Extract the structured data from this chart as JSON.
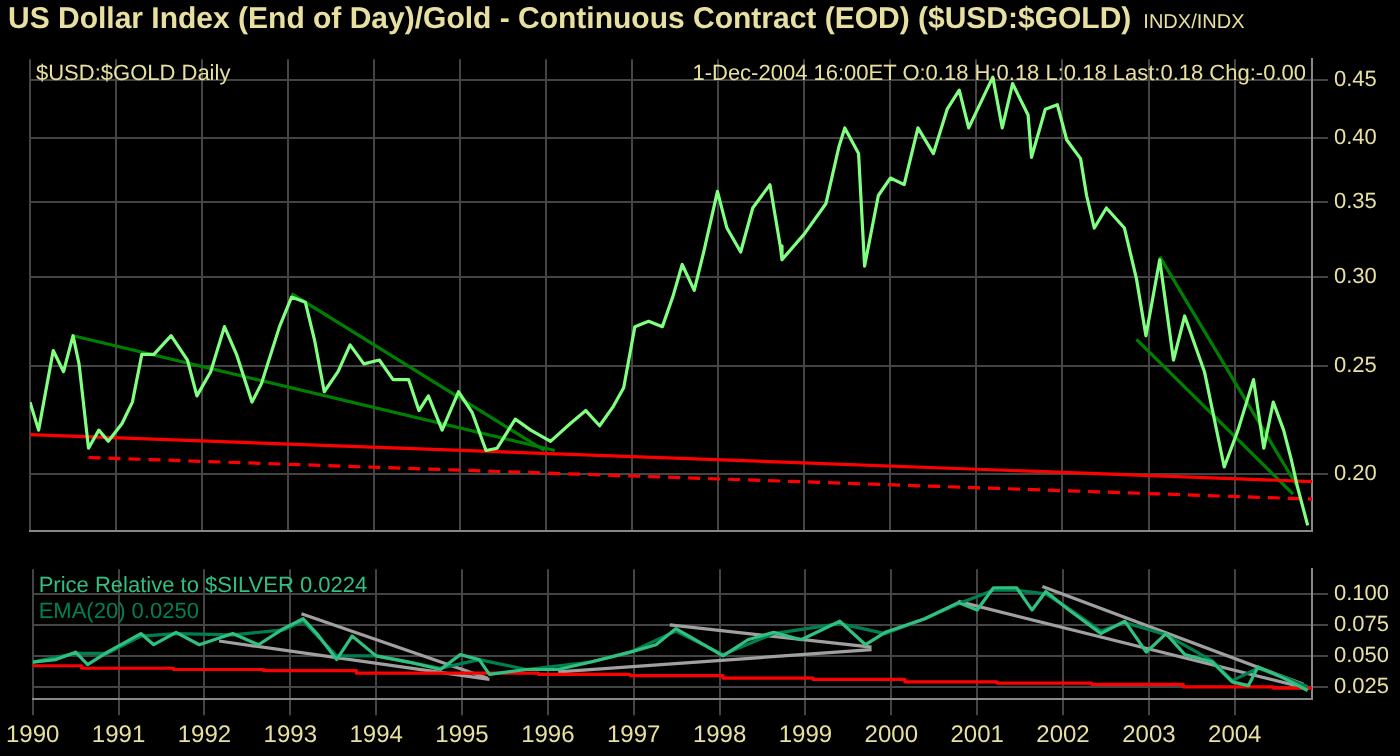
{
  "chart_data": [
    {
      "type": "line",
      "title": "US Dollar Index (End of Day)/Gold - Continuous Contract (EOD) ($USD:$GOLD)",
      "subtitle": "INDX/INDX",
      "annotations": [
        "$USD:$GOLD Daily",
        "1-Dec-2004 16:00ET O:0.18 H:0.18 L:0.18 Last:0.18 Chg:-0.00"
      ],
      "xlim": [
        1990,
        2004.9
      ],
      "xticks": [
        1990,
        1991,
        1992,
        1993,
        1994,
        1995,
        1996,
        1997,
        1998,
        1999,
        2000,
        2001,
        2002,
        2003,
        2004
      ],
      "ylim": [
        0.178,
        0.47
      ],
      "yticks": [
        {
          "value": 0.2,
          "label": "0.20"
        },
        {
          "value": 0.25,
          "label": "0.25"
        },
        {
          "value": 0.3,
          "label": "0.30"
        },
        {
          "value": 0.35,
          "label": "0.35"
        },
        {
          "value": 0.4,
          "label": "0.40"
        },
        {
          "value": 0.45,
          "label": "0.45"
        }
      ],
      "log": "y",
      "grid": true,
      "tick_labels": "y",
      "marker": "none",
      "series": [
        {
          "color": "#80ff80",
          "x": [
            1990.0,
            1990.1,
            1990.27,
            1990.39,
            1990.5,
            1990.57,
            1990.68,
            1990.8,
            1990.91,
            1991.07,
            1991.19,
            1991.3,
            1991.44,
            1991.64,
            1991.83,
            1991.94,
            1992.1,
            1992.26,
            1992.4,
            1992.58,
            1992.69,
            1992.9,
            1993.04,
            1993.2,
            1993.31,
            1993.42,
            1993.58,
            1993.72,
            1993.88,
            1994.06,
            1994.22,
            1994.4,
            1994.52,
            1994.63,
            1994.79,
            1994.98,
            1995.14,
            1995.3,
            1995.43,
            1995.64,
            1995.82,
            1996.05,
            1996.28,
            1996.46,
            1996.62,
            1996.78,
            1996.9,
            1997.03,
            1997.19,
            1997.35,
            1997.47,
            1997.58,
            1997.72,
            1997.83,
            1997.99,
            1998.1,
            1998.26,
            1998.4,
            1998.6,
            1998.72,
            1998.74,
            1999.0,
            1999.25,
            1999.4,
            1999.47,
            1999.63,
            1999.7,
            1999.86,
            2000.0,
            2000.16,
            2000.32,
            2000.5,
            2000.66,
            2000.8,
            2000.91,
            2001.19,
            2001.3,
            2001.42,
            2001.6,
            2001.64,
            2001.8,
            2001.94,
            2002.05,
            2002.21,
            2002.28,
            2002.37,
            2002.51,
            2002.72,
            2002.86,
            2002.97,
            2003.13,
            2003.29,
            2003.42,
            2003.65,
            2003.88,
            2004.04,
            2004.22,
            2004.34,
            2004.45,
            2004.57,
            2004.66,
            2004.73,
            2004.85
          ],
          "values": [
            0.232,
            0.219,
            0.258,
            0.247,
            0.266,
            0.251,
            0.211,
            0.219,
            0.214,
            0.222,
            0.232,
            0.256,
            0.256,
            0.266,
            0.253,
            0.235,
            0.247,
            0.271,
            0.256,
            0.232,
            0.241,
            0.271,
            0.288,
            0.285,
            0.263,
            0.237,
            0.247,
            0.261,
            0.251,
            0.253,
            0.243,
            0.243,
            0.228,
            0.235,
            0.219,
            0.237,
            0.227,
            0.21,
            0.211,
            0.224,
            0.219,
            0.214,
            0.222,
            0.228,
            0.221,
            0.23,
            0.239,
            0.271,
            0.274,
            0.271,
            0.288,
            0.308,
            0.292,
            0.316,
            0.358,
            0.332,
            0.316,
            0.346,
            0.363,
            0.32,
            0.311,
            0.328,
            0.349,
            0.392,
            0.408,
            0.387,
            0.307,
            0.355,
            0.368,
            0.363,
            0.408,
            0.387,
            0.424,
            0.441,
            0.408,
            0.453,
            0.408,
            0.447,
            0.419,
            0.384,
            0.424,
            0.428,
            0.398,
            0.383,
            0.355,
            0.332,
            0.346,
            0.332,
            0.299,
            0.266,
            0.311,
            0.253,
            0.277,
            0.247,
            0.203,
            0.219,
            0.243,
            0.211,
            0.232,
            0.219,
            0.206,
            0.195,
            0.18
          ]
        },
        {
          "type": "line",
          "color": "#ff0000",
          "x": [
            1990,
            2004.9
          ],
          "values": [
            0.217,
            0.197
          ]
        },
        {
          "type": "line",
          "color": "#ff0000",
          "line_style": "dashed",
          "x": [
            1990.68,
            2004.9
          ],
          "values": [
            0.207,
            0.19
          ]
        },
        {
          "type": "line",
          "color": "#008000",
          "x": [
            1990.5,
            1996.1
          ],
          "values": [
            0.266,
            0.21
          ]
        },
        {
          "type": "line",
          "color": "#008000",
          "x": [
            1993.04,
            1995.98
          ],
          "values": [
            0.29,
            0.21
          ]
        },
        {
          "type": "line",
          "color": "#008000",
          "x": [
            2003.13,
            2004.73
          ],
          "values": [
            0.313,
            0.195
          ]
        },
        {
          "type": "line",
          "color": "#008000",
          "x": [
            2002.86,
            2004.68
          ],
          "values": [
            0.264,
            0.192
          ]
        }
      ]
    },
    {
      "type": "line",
      "xlim": [
        1990,
        2004.9
      ],
      "xticks": [
        1990,
        1991,
        1992,
        1993,
        1994,
        1995,
        1996,
        1997,
        1998,
        1999,
        2000,
        2001,
        2002,
        2003,
        2004
      ],
      "ylim": [
        0.015,
        0.12
      ],
      "yticks": [
        {
          "value": 0.025,
          "label": "0.025"
        },
        {
          "value": 0.05,
          "label": "0.050"
        },
        {
          "value": 0.075,
          "label": "0.075"
        },
        {
          "value": 0.1,
          "label": "0.100"
        }
      ],
      "grid": true,
      "legend": "top left",
      "marker": "none",
      "series": [
        {
          "name": "Price Relative to $SILVER 0.0224",
          "color": "#30c080",
          "x": [
            1990.0,
            1990.27,
            1990.5,
            1990.64,
            1990.87,
            1991.26,
            1991.41,
            1991.67,
            1991.94,
            1992.33,
            1992.63,
            1992.92,
            1993.15,
            1993.31,
            1993.54,
            1993.72,
            1994.0,
            1994.38,
            1994.75,
            1994.98,
            1995.2,
            1995.32,
            1995.75,
            1996.12,
            1996.5,
            1996.96,
            1997.26,
            1997.49,
            1997.72,
            1998.04,
            1998.33,
            1998.63,
            1998.95,
            1999.4,
            1999.7,
            1999.93,
            2000.39,
            2000.78,
            2001.0,
            2001.19,
            2001.46,
            2001.64,
            2001.8,
            2002.05,
            2002.44,
            2002.72,
            2002.97,
            2003.2,
            2003.42,
            2003.74,
            2003.97,
            2004.16,
            2004.27,
            2004.57,
            2004.85
          ],
          "values": [
            0.045,
            0.047,
            0.053,
            0.043,
            0.053,
            0.068,
            0.059,
            0.069,
            0.059,
            0.068,
            0.059,
            0.072,
            0.08,
            0.068,
            0.047,
            0.066,
            0.05,
            0.045,
            0.039,
            0.051,
            0.047,
            0.035,
            0.039,
            0.039,
            0.045,
            0.053,
            0.059,
            0.072,
            0.063,
            0.05,
            0.063,
            0.069,
            0.063,
            0.078,
            0.059,
            0.069,
            0.08,
            0.093,
            0.087,
            0.105,
            0.105,
            0.087,
            0.102,
            0.088,
            0.068,
            0.078,
            0.053,
            0.068,
            0.051,
            0.045,
            0.029,
            0.026,
            0.041,
            0.032,
            0.022
          ]
        },
        {
          "type": "line",
          "name": "EMA(20) 0.0250",
          "color": "#008050",
          "x": [
            1990.0,
            1990.5,
            1990.87,
            1991.26,
            1991.67,
            1992.33,
            1992.92,
            1993.15,
            1993.54,
            1994.0,
            1994.38,
            1994.75,
            1995.2,
            1995.75,
            1996.5,
            1996.96,
            1997.49,
            1998.04,
            1998.63,
            1999.4,
            1999.93,
            2000.39,
            2000.78,
            2001.19,
            2001.46,
            2001.8,
            2002.05,
            2002.44,
            2002.72,
            2003.2,
            2003.74,
            2003.97,
            2004.27,
            2004.57,
            2004.85
          ],
          "values": [
            0.045,
            0.052,
            0.052,
            0.066,
            0.068,
            0.067,
            0.071,
            0.078,
            0.05,
            0.05,
            0.045,
            0.04,
            0.047,
            0.039,
            0.045,
            0.053,
            0.07,
            0.051,
            0.068,
            0.076,
            0.068,
            0.08,
            0.092,
            0.103,
            0.103,
            0.1,
            0.089,
            0.07,
            0.077,
            0.067,
            0.046,
            0.03,
            0.04,
            0.033,
            0.025
          ]
        },
        {
          "type": "step",
          "color": "#ff0000",
          "x": [
            1990,
            1990.57,
            1991.64,
            1992.69,
            1993.77,
            1994.84,
            1995.89,
            1996.96,
            1998.04,
            1999.09,
            2000.16,
            2001.23,
            2002.33,
            2003.4,
            2004.45,
            2004.9
          ],
          "values": [
            0.042,
            0.04,
            0.039,
            0.038,
            0.036,
            0.036,
            0.035,
            0.034,
            0.032,
            0.031,
            0.029,
            0.028,
            0.027,
            0.025,
            0.024,
            0.024
          ]
        },
        {
          "type": "line",
          "color": "#a0a0a0",
          "x": [
            1992.17,
            1995.32
          ],
          "values": [
            0.062,
            0.031
          ]
        },
        {
          "type": "line",
          "color": "#a0a0a0",
          "x": [
            1993.13,
            1995.3
          ],
          "values": [
            0.084,
            0.032
          ]
        },
        {
          "type": "line",
          "color": "#a0a0a0",
          "x": [
            1996.12,
            1999.77
          ],
          "values": [
            0.037,
            0.055
          ]
        },
        {
          "type": "line",
          "color": "#a0a0a0",
          "x": [
            1997.42,
            1999.77
          ],
          "values": [
            0.075,
            0.057
          ]
        },
        {
          "type": "line",
          "color": "#a0a0a0",
          "x": [
            2000.78,
            2004.77
          ],
          "values": [
            0.094,
            0.025
          ]
        },
        {
          "type": "line",
          "color": "#a0a0a0",
          "x": [
            2001.76,
            2004.8
          ],
          "values": [
            0.106,
            0.027
          ]
        }
      ]
    }
  ]
}
